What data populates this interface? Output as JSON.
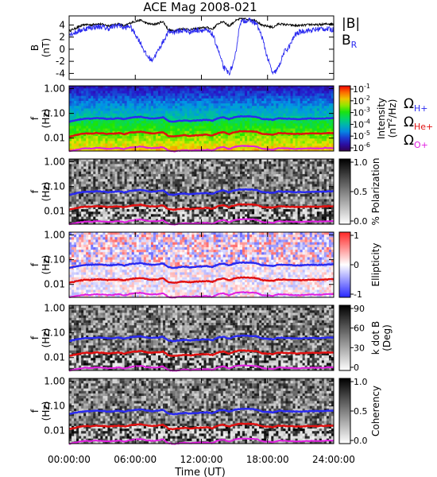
{
  "chart_data": {
    "type": "multi-panel spectrogram",
    "title": "ACE Mag 2008-021",
    "xlabel": "Time (UT)",
    "x_ticks": [
      "00:00:00",
      "06:00:00",
      "12:00:00",
      "18:00:00",
      "24:00:00"
    ],
    "x_range_hours": [
      0,
      24
    ],
    "panels": [
      {
        "kind": "line",
        "ylabel_line1": "B",
        "ylabel_line2": "(nT)",
        "y_ticks": [
          "4",
          "2",
          "0",
          "-2",
          "-4"
        ],
        "ylim": [
          -5,
          5.5
        ],
        "legend": [
          {
            "label": "|B|",
            "color": "#000000"
          },
          {
            "label": "B",
            "sub": "R",
            "color": "#2a2af0"
          }
        ],
        "series": [
          {
            "name": "|B|",
            "color": "#000000",
            "x": [
              0,
              0.5,
              1,
              1.5,
              2,
              2.5,
              3,
              3.5,
              4,
              4.5,
              5,
              5.5,
              6,
              6.5,
              7,
              7.5,
              8,
              8.5,
              9,
              9.5,
              10,
              10.5,
              11,
              11.5,
              12,
              12.5,
              13,
              13.5,
              14,
              14.5,
              15,
              15.5,
              16,
              16.5,
              17,
              17.5,
              18,
              18.5,
              19,
              19.5,
              20,
              20.5,
              21,
              21.5,
              22,
              22.5,
              23,
              23.5,
              24
            ],
            "values": [
              3.0,
              3.4,
              3.8,
              4.1,
              4.0,
              4.2,
              4.1,
              3.9,
              4.0,
              4.2,
              3.8,
              4.3,
              4.6,
              4.8,
              4.3,
              4.1,
              4.2,
              4.6,
              3.2,
              3.0,
              3.3,
              3.4,
              3.2,
              3.4,
              3.5,
              3.6,
              3.3,
              4.2,
              4.6,
              3.8,
              4.6,
              5.0,
              5.0,
              4.9,
              4.7,
              3.9,
              3.8,
              3.6,
              4.2,
              4.1,
              4.0,
              3.9,
              3.9,
              4.0,
              4.1,
              4.0,
              4.1,
              4.2,
              4.2
            ]
          },
          {
            "name": "B_R",
            "color": "#2a2af0",
            "x": [
              0,
              0.5,
              1,
              1.5,
              2,
              2.5,
              3,
              3.5,
              4,
              4.5,
              5,
              5.5,
              6,
              6.5,
              7,
              7.5,
              8,
              8.5,
              9,
              9.5,
              10,
              10.5,
              11,
              11.5,
              12,
              12.5,
              13,
              13.5,
              14,
              14.5,
              15,
              15.5,
              16,
              16.5,
              17,
              17.5,
              18,
              18.5,
              19,
              19.5,
              20,
              20.5,
              21,
              21.5,
              22,
              22.5,
              23,
              23.5,
              24
            ],
            "values": [
              2.5,
              2.7,
              3.1,
              3.4,
              3.6,
              3.7,
              3.7,
              3.4,
              3.7,
              4.0,
              3.5,
              3.8,
              2.5,
              1.0,
              -1.0,
              -1.8,
              -0.5,
              1.2,
              2.8,
              2.9,
              3.0,
              3.1,
              2.9,
              3.1,
              3.2,
              3.0,
              2.5,
              0.0,
              -3.0,
              -4.0,
              -2.0,
              4.4,
              4.8,
              4.7,
              4.2,
              2.0,
              -1.5,
              -4.2,
              -3.0,
              -0.5,
              0.5,
              2.4,
              2.9,
              3.1,
              3.1,
              3.3,
              3.4,
              3.3,
              3.2
            ]
          }
        ]
      },
      {
        "kind": "spectrogram",
        "quantity": "Intensity",
        "ylabel_line1": "f",
        "ylabel_line2": "(Hz)",
        "y_ticks": [
          "1.00",
          "0.10",
          "0.01"
        ],
        "y_log_range_hz": [
          0.003,
          1.3
        ],
        "colorbar": {
          "palette": "rainbow",
          "ticks": [
            {
              "base": "10",
              "exp": "-1"
            },
            {
              "base": "10",
              "exp": "-2"
            },
            {
              "base": "10",
              "exp": "-3"
            },
            {
              "base": "10",
              "exp": "-4"
            },
            {
              "base": "10",
              "exp": "-5"
            },
            {
              "base": "10",
              "exp": "-6"
            }
          ],
          "label": "Intensity",
          "label_line2": "(nT",
          "label_sup": "2",
          "label_line2_tail": "/Hz)"
        },
        "legend": [
          {
            "symbol": "Ω",
            "sub": "H+",
            "color": "#2a2af0"
          },
          {
            "symbol": "Ω",
            "sub": "He+",
            "color": "#e01010"
          },
          {
            "symbol": "Ω",
            "sub": "O+",
            "color": "#e020e0"
          }
        ]
      },
      {
        "kind": "spectrogram",
        "quantity": "Polarization",
        "ylabel_line1": "f",
        "ylabel_line2": "(Hz)",
        "y_ticks": [
          "1.00",
          "0.10",
          "0.01"
        ],
        "colorbar": {
          "palette": "gray_reversed",
          "ticks": [
            "1.0",
            "0.5",
            "0.0"
          ],
          "label": "% Polarization"
        }
      },
      {
        "kind": "spectrogram",
        "quantity": "Ellipticity",
        "ylabel_line1": "f",
        "ylabel_line2": "(Hz)",
        "y_ticks": [
          "1.00",
          "0.10",
          "0.01"
        ],
        "colorbar": {
          "palette": "blue_white_red",
          "ticks": [
            "1",
            "0",
            "-1"
          ],
          "label": "Ellipticity"
        }
      },
      {
        "kind": "spectrogram",
        "quantity": "k dot B",
        "ylabel_line1": "f",
        "ylabel_line2": "(Hz)",
        "y_ticks": [
          "1.00",
          "0.10",
          "0.01"
        ],
        "colorbar": {
          "palette": "gray_reversed",
          "ticks": [
            "90",
            "60",
            "30",
            "0"
          ],
          "label": "k dot B",
          "label_line2": "(Deg)"
        }
      },
      {
        "kind": "spectrogram",
        "quantity": "Coherency",
        "ylabel_line1": "f",
        "ylabel_line2": "(Hz)",
        "y_ticks": [
          "1.00",
          "0.10",
          "0.01"
        ],
        "colorbar": {
          "palette": "gray_reversed",
          "ticks": [
            "1.0",
            "0.5",
            "0.0"
          ],
          "label": "Coherency"
        }
      }
    ],
    "cyclotron_frequencies_hz": {
      "H+": {
        "color": "#2a2af0",
        "x": [
          0,
          0.5,
          1,
          1.5,
          2,
          2.5,
          3,
          3.5,
          4,
          4.5,
          5,
          5.5,
          6,
          6.5,
          7,
          7.5,
          8,
          8.5,
          9,
          9.5,
          10,
          10.5,
          11,
          11.5,
          12,
          12.5,
          13,
          13.5,
          14,
          14.5,
          15,
          15.5,
          16,
          16.5,
          17,
          17.5,
          18,
          18.5,
          19,
          19.5,
          20,
          20.5,
          21,
          21.5,
          22,
          22.5,
          23,
          23.5,
          24
        ],
        "values": [
          0.046,
          0.052,
          0.058,
          0.062,
          0.061,
          0.064,
          0.063,
          0.059,
          0.061,
          0.064,
          0.058,
          0.066,
          0.07,
          0.073,
          0.066,
          0.062,
          0.064,
          0.07,
          0.049,
          0.046,
          0.05,
          0.052,
          0.049,
          0.052,
          0.053,
          0.055,
          0.05,
          0.064,
          0.07,
          0.058,
          0.07,
          0.076,
          0.076,
          0.075,
          0.072,
          0.059,
          0.058,
          0.055,
          0.064,
          0.062,
          0.061,
          0.059,
          0.059,
          0.061,
          0.062,
          0.061,
          0.062,
          0.064,
          0.064
        ]
      },
      "He+": {
        "color": "#e01010",
        "x": [
          0,
          0.5,
          1,
          1.5,
          2,
          2.5,
          3,
          3.5,
          4,
          4.5,
          5,
          5.5,
          6,
          6.5,
          7,
          7.5,
          8,
          8.5,
          9,
          9.5,
          10,
          10.5,
          11,
          11.5,
          12,
          12.5,
          13,
          13.5,
          14,
          14.5,
          15,
          15.5,
          16,
          16.5,
          17,
          17.5,
          18,
          18.5,
          19,
          19.5,
          20,
          20.5,
          21,
          21.5,
          22,
          22.5,
          23,
          23.5,
          24
        ],
        "values": [
          0.0115,
          0.013,
          0.0145,
          0.0155,
          0.0152,
          0.016,
          0.0157,
          0.0148,
          0.0152,
          0.016,
          0.0145,
          0.0165,
          0.0175,
          0.0183,
          0.0165,
          0.0155,
          0.016,
          0.0175,
          0.0122,
          0.0115,
          0.0125,
          0.013,
          0.0122,
          0.013,
          0.0133,
          0.0138,
          0.0125,
          0.016,
          0.0175,
          0.0145,
          0.0175,
          0.019,
          0.019,
          0.0187,
          0.018,
          0.0148,
          0.0145,
          0.0138,
          0.016,
          0.0155,
          0.0152,
          0.0148,
          0.0148,
          0.0152,
          0.0155,
          0.0152,
          0.0155,
          0.016,
          0.016
        ]
      },
      "O+": {
        "color": "#e020e0",
        "x": [
          0,
          0.5,
          1,
          1.5,
          2,
          2.5,
          3,
          3.5,
          4,
          4.5,
          5,
          5.5,
          6,
          6.5,
          7,
          7.5,
          8,
          8.5,
          9,
          9.5,
          10,
          10.5,
          11,
          11.5,
          12,
          12.5,
          13,
          13.5,
          14,
          14.5,
          15,
          15.5,
          16,
          16.5,
          17,
          17.5,
          18,
          18.5,
          19,
          19.5,
          20,
          20.5,
          21,
          21.5,
          22,
          22.5,
          23,
          23.5,
          24
        ],
        "values": [
          0.0029,
          0.0033,
          0.0036,
          0.0039,
          0.0038,
          0.004,
          0.0039,
          0.0037,
          0.0038,
          0.004,
          0.0036,
          0.0041,
          0.0044,
          0.0046,
          0.0041,
          0.0039,
          0.004,
          0.0044,
          0.0031,
          0.0029,
          0.0031,
          0.0033,
          0.0031,
          0.0033,
          0.0033,
          0.0034,
          0.0031,
          0.004,
          0.0044,
          0.0036,
          0.0044,
          0.0048,
          0.0048,
          0.0047,
          0.0045,
          0.0037,
          0.0036,
          0.0034,
          0.004,
          0.0039,
          0.0038,
          0.0037,
          0.0037,
          0.0038,
          0.0039,
          0.0038,
          0.0039,
          0.004,
          0.004
        ]
      }
    }
  }
}
